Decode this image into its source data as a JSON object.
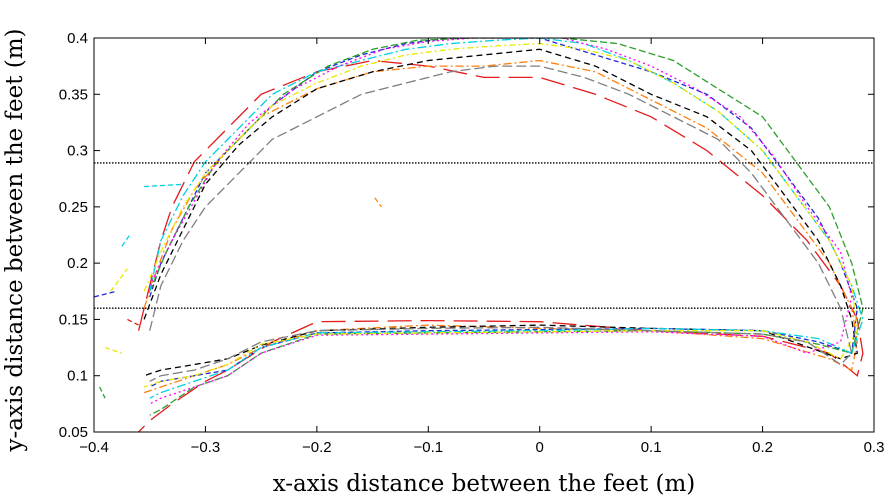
{
  "chart_data": {
    "type": "line",
    "title": "",
    "xlabel": "x-axis distance between the feet (m)",
    "ylabel": "y-axis distance between the feet (m)",
    "xlim": [
      -0.4,
      0.3
    ],
    "ylim": [
      0.05,
      0.4
    ],
    "xticks": [
      -0.4,
      -0.3,
      -0.2,
      -0.1,
      0,
      0.1,
      0.2,
      0.3
    ],
    "xtick_labels": [
      "−0.4",
      "−0.3",
      "−0.2",
      "−0.1",
      "0",
      "0.1",
      "0.2",
      "0.3"
    ],
    "yticks": [
      0.05,
      0.1,
      0.15,
      0.2,
      0.25,
      0.3,
      0.35,
      0.4
    ],
    "ytick_labels": [
      "0.05",
      "0.1",
      "0.15",
      "0.2",
      "0.25",
      "0.3",
      "0.35",
      "0.4"
    ],
    "grid": false,
    "legend": "none",
    "reference_lines": [
      {
        "y": 0.289,
        "style": "dotted",
        "color": "#000000"
      },
      {
        "y": 0.16,
        "style": "dotted",
        "color": "#000000"
      }
    ],
    "series": [
      {
        "color": "#e41a1c",
        "dash": "24,9",
        "x": [
          -0.36,
          -0.35,
          -0.34,
          -0.33,
          -0.31,
          -0.28,
          -0.25,
          -0.2,
          -0.15,
          -0.1,
          -0.05,
          0,
          0.05,
          0.1,
          0.15,
          0.2,
          0.24,
          0.27,
          0.285,
          0.29,
          0.285,
          0.26,
          0.2,
          0.1,
          0,
          -0.1,
          -0.2,
          -0.24,
          -0.28,
          -0.3,
          -0.33,
          -0.35,
          -0.36
        ],
        "y": [
          0.14,
          0.18,
          0.22,
          0.25,
          0.29,
          0.32,
          0.35,
          0.37,
          0.38,
          0.375,
          0.365,
          0.365,
          0.35,
          0.33,
          0.3,
          0.26,
          0.22,
          0.18,
          0.15,
          0.12,
          0.1,
          0.12,
          0.135,
          0.14,
          0.148,
          0.149,
          0.148,
          0.13,
          0.105,
          0.095,
          0.075,
          0.06,
          0.05
        ]
      },
      {
        "color": "#ff7f0e",
        "dash": "8,3,2,3",
        "x": [
          -0.355,
          -0.345,
          -0.33,
          -0.31,
          -0.28,
          -0.25,
          -0.2,
          -0.15,
          -0.1,
          -0.05,
          0,
          0.05,
          0.1,
          0.15,
          0.2,
          0.23,
          0.26,
          0.28,
          0.285,
          0.28,
          0.26,
          0.2,
          0.1,
          0,
          -0.1,
          -0.2,
          -0.25,
          -0.28,
          -0.31,
          -0.34,
          -0.355
        ],
        "y": [
          0.16,
          0.19,
          0.23,
          0.265,
          0.3,
          0.33,
          0.355,
          0.37,
          0.375,
          0.375,
          0.38,
          0.37,
          0.345,
          0.32,
          0.28,
          0.24,
          0.2,
          0.16,
          0.13,
          0.105,
          0.115,
          0.133,
          0.14,
          0.142,
          0.145,
          0.14,
          0.125,
          0.11,
          0.1,
          0.09,
          0.085
        ]
      },
      {
        "color": "#000000",
        "dash": "6,4",
        "x": [
          -0.355,
          -0.34,
          -0.32,
          -0.3,
          -0.27,
          -0.24,
          -0.2,
          -0.15,
          -0.1,
          -0.05,
          0,
          0.05,
          0.1,
          0.15,
          0.19,
          0.22,
          0.25,
          0.27,
          0.28,
          0.285,
          0.27,
          0.2,
          0.1,
          0,
          -0.1,
          -0.2,
          -0.25,
          -0.28,
          -0.31,
          -0.34,
          -0.355
        ],
        "y": [
          0.15,
          0.19,
          0.23,
          0.27,
          0.305,
          0.33,
          0.355,
          0.37,
          0.38,
          0.385,
          0.39,
          0.375,
          0.35,
          0.33,
          0.3,
          0.26,
          0.22,
          0.18,
          0.15,
          0.12,
          0.115,
          0.14,
          0.142,
          0.145,
          0.143,
          0.14,
          0.127,
          0.115,
          0.11,
          0.105,
          0.1
        ]
      },
      {
        "color": "#1f2ccf",
        "dash": "5,3",
        "x": [
          -0.35,
          -0.34,
          -0.32,
          -0.3,
          -0.27,
          -0.24,
          -0.2,
          -0.16,
          -0.12,
          -0.08,
          -0.03,
          0,
          0.05,
          0.1,
          0.15,
          0.19,
          0.22,
          0.25,
          0.27,
          0.285,
          0.28,
          0.25,
          0.2,
          0.1,
          0,
          -0.1,
          -0.2,
          -0.25,
          -0.28,
          -0.31,
          -0.34,
          -0.35
        ],
        "y": [
          0.17,
          0.2,
          0.24,
          0.28,
          0.31,
          0.34,
          0.37,
          0.385,
          0.395,
          0.4,
          0.4,
          0.4,
          0.385,
          0.37,
          0.35,
          0.32,
          0.28,
          0.24,
          0.2,
          0.16,
          0.12,
          0.13,
          0.14,
          0.142,
          0.141,
          0.14,
          0.138,
          0.125,
          0.105,
          0.1,
          0.095,
          0.09
        ]
      },
      {
        "color": "#2ca02c",
        "dash": "7,3",
        "x": [
          -0.35,
          -0.335,
          -0.315,
          -0.29,
          -0.26,
          -0.23,
          -0.19,
          -0.15,
          -0.11,
          -0.06,
          -0.02,
          0.02,
          0.07,
          0.12,
          0.16,
          0.2,
          0.23,
          0.26,
          0.28,
          0.29,
          0.28,
          0.25,
          0.2,
          0.1,
          0,
          -0.1,
          -0.2,
          -0.25,
          -0.28,
          -0.31,
          -0.34,
          -0.35
        ],
        "y": [
          0.175,
          0.21,
          0.25,
          0.29,
          0.32,
          0.35,
          0.375,
          0.39,
          0.398,
          0.4,
          0.4,
          0.4,
          0.395,
          0.38,
          0.355,
          0.33,
          0.29,
          0.25,
          0.2,
          0.16,
          0.12,
          0.128,
          0.137,
          0.14,
          0.139,
          0.138,
          0.137,
          0.12,
          0.1,
          0.09,
          0.07,
          0.065
        ]
      },
      {
        "color": "#00d0e0",
        "dash": "9,3,2,3",
        "x": [
          -0.35,
          -0.34,
          -0.32,
          -0.3,
          -0.27,
          -0.24,
          -0.2,
          -0.16,
          -0.12,
          -0.08,
          -0.04,
          0,
          0.04,
          0.08,
          0.12,
          0.16,
          0.2,
          0.23,
          0.26,
          0.28,
          0.29,
          0.28,
          0.25,
          0.2,
          0.1,
          0,
          -0.1,
          -0.2,
          -0.25,
          -0.28,
          -0.31,
          -0.34,
          -0.35
        ],
        "y": [
          0.175,
          0.22,
          0.26,
          0.29,
          0.32,
          0.35,
          0.37,
          0.38,
          0.39,
          0.395,
          0.398,
          0.4,
          0.395,
          0.38,
          0.36,
          0.335,
          0.3,
          0.26,
          0.22,
          0.18,
          0.15,
          0.12,
          0.133,
          0.14,
          0.142,
          0.14,
          0.139,
          0.138,
          0.125,
          0.105,
          0.095,
          0.085,
          0.08
        ]
      },
      {
        "color": "#ff00ff",
        "dash": "2,3",
        "x": [
          -0.35,
          -0.33,
          -0.31,
          -0.29,
          -0.26,
          -0.22,
          -0.18,
          -0.14,
          -0.1,
          -0.06,
          -0.02,
          0.02,
          0.06,
          0.1,
          0.14,
          0.18,
          0.21,
          0.24,
          0.27,
          0.28,
          0.27,
          0.24,
          0.2,
          0.1,
          0,
          -0.1,
          -0.2,
          -0.25,
          -0.28,
          -0.31,
          -0.34,
          -0.35
        ],
        "y": [
          0.18,
          0.22,
          0.255,
          0.29,
          0.325,
          0.355,
          0.375,
          0.39,
          0.397,
          0.4,
          0.4,
          0.4,
          0.39,
          0.375,
          0.355,
          0.33,
          0.295,
          0.25,
          0.21,
          0.17,
          0.13,
          0.12,
          0.135,
          0.139,
          0.138,
          0.137,
          0.136,
          0.12,
          0.1,
          0.09,
          0.08,
          0.075
        ]
      },
      {
        "color": "#e8e800",
        "dash": "6,3,2,3",
        "x": [
          -0.355,
          -0.34,
          -0.32,
          -0.3,
          -0.27,
          -0.24,
          -0.2,
          -0.16,
          -0.12,
          -0.08,
          -0.04,
          0,
          0.04,
          0.08,
          0.12,
          0.16,
          0.2,
          0.23,
          0.26,
          0.28,
          0.285,
          0.27,
          0.24,
          0.2,
          0.1,
          0,
          -0.1,
          -0.2,
          -0.25,
          -0.28,
          -0.31,
          -0.34,
          -0.355
        ],
        "y": [
          0.175,
          0.21,
          0.25,
          0.28,
          0.31,
          0.34,
          0.36,
          0.375,
          0.385,
          0.39,
          0.393,
          0.395,
          0.39,
          0.38,
          0.36,
          0.335,
          0.3,
          0.26,
          0.22,
          0.18,
          0.14,
          0.115,
          0.13,
          0.14,
          0.14,
          0.139,
          0.138,
          0.137,
          0.128,
          0.11,
          0.1,
          0.095,
          0.09
        ]
      },
      {
        "color": "#7f7f7f",
        "dash": "10,4",
        "x": [
          -0.35,
          -0.34,
          -0.32,
          -0.3,
          -0.27,
          -0.24,
          -0.2,
          -0.16,
          -0.12,
          -0.08,
          -0.04,
          0,
          0.04,
          0.08,
          0.12,
          0.16,
          0.19,
          0.22,
          0.25,
          0.27,
          0.28,
          0.27,
          0.24,
          0.2,
          0.1,
          0,
          -0.1,
          -0.2,
          -0.25,
          -0.28,
          -0.31,
          -0.34,
          -0.35
        ],
        "y": [
          0.14,
          0.18,
          0.22,
          0.25,
          0.28,
          0.31,
          0.33,
          0.35,
          0.36,
          0.37,
          0.375,
          0.375,
          0.365,
          0.35,
          0.33,
          0.31,
          0.28,
          0.24,
          0.2,
          0.16,
          0.12,
          0.11,
          0.13,
          0.137,
          0.14,
          0.143,
          0.142,
          0.14,
          0.13,
          0.115,
          0.105,
          0.1,
          0.095
        ]
      }
    ],
    "fragments": [
      {
        "color": "#e8e800",
        "x": [
          -0.385,
          -0.37
        ],
        "y": [
          0.175,
          0.195
        ]
      },
      {
        "color": "#00d0e0",
        "x": [
          -0.375,
          -0.368
        ],
        "y": [
          0.215,
          0.225
        ]
      },
      {
        "color": "#1f2ccf",
        "x": [
          -0.4,
          -0.38
        ],
        "y": [
          0.17,
          0.175
        ]
      },
      {
        "color": "#2ca02c",
        "x": [
          -0.395,
          -0.39
        ],
        "y": [
          0.09,
          0.08
        ]
      },
      {
        "color": "#e8e800",
        "x": [
          -0.39,
          -0.375
        ],
        "y": [
          0.125,
          0.12
        ]
      },
      {
        "color": "#ff7f0e",
        "x": [
          -0.148,
          -0.142
        ],
        "y": [
          0.258,
          0.25
        ]
      },
      {
        "color": "#00d0e0",
        "x": [
          -0.355,
          -0.32
        ],
        "y": [
          0.268,
          0.27
        ]
      },
      {
        "color": "#e41a1c",
        "x": [
          -0.37,
          -0.36
        ],
        "y": [
          0.15,
          0.145
        ]
      }
    ]
  }
}
